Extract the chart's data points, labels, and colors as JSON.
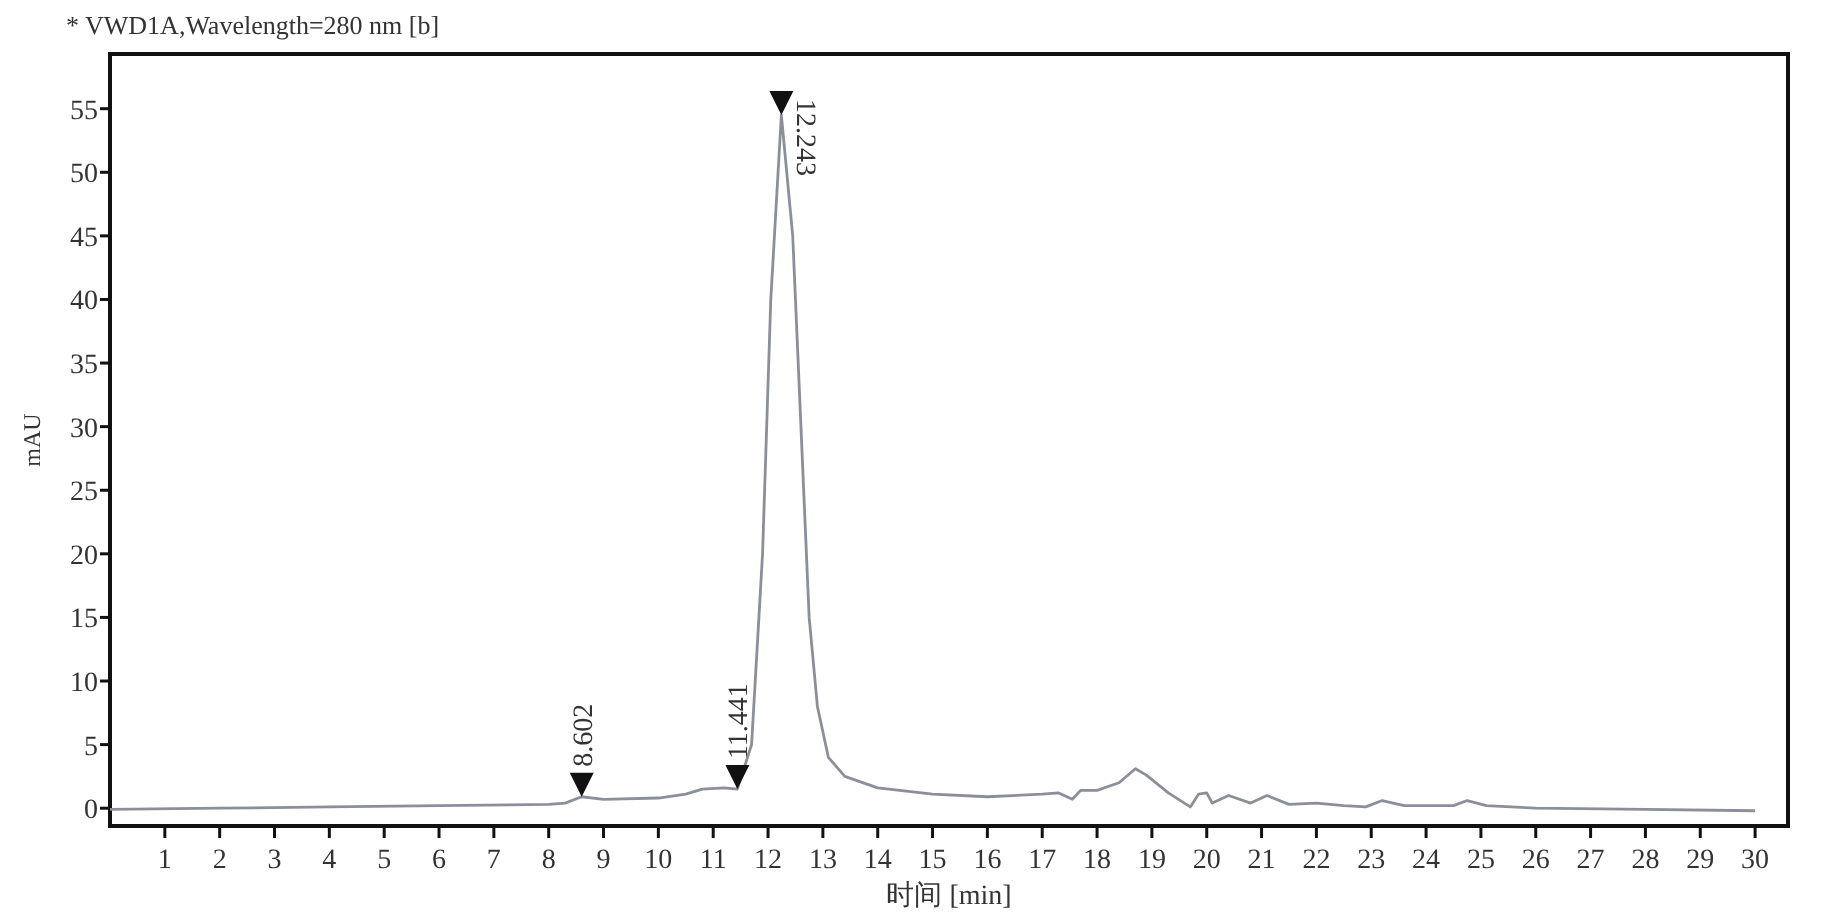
{
  "chart_data": {
    "type": "line",
    "title": "* VWD1A,Wavelength=280 nm [b]",
    "xlabel": "时间 [min]",
    "ylabel": "mAU",
    "x": [
      0,
      2,
      4,
      6,
      8,
      8.3,
      8.6,
      9,
      10,
      10.5,
      10.8,
      11.2,
      11.44,
      11.7,
      11.9,
      12.05,
      12.243,
      12.45,
      12.6,
      12.75,
      12.9,
      13.1,
      13.4,
      14,
      15,
      16,
      17,
      17.3,
      17.55,
      17.7,
      18,
      18.4,
      18.7,
      18.9,
      19.3,
      19.7,
      19.85,
      20,
      20.1,
      20.4,
      20.8,
      21.1,
      21.5,
      22,
      22.5,
      22.9,
      23.2,
      23.6,
      24.5,
      24.75,
      25.1,
      26,
      28,
      30
    ],
    "series": [
      {
        "color": "#8a8f99",
        "values": [
          -0.1,
          0,
          0.1,
          0.2,
          0.3,
          0.4,
          0.9,
          0.7,
          0.8,
          1.1,
          1.5,
          1.6,
          1.5,
          5,
          20,
          40,
          54.5,
          45,
          30,
          15,
          8,
          4,
          2.5,
          1.6,
          1.1,
          0.9,
          1.1,
          1.2,
          0.7,
          1.4,
          1.4,
          2,
          3.1,
          2.6,
          1.2,
          0.1,
          1.1,
          1.2,
          0.4,
          1,
          0.4,
          1,
          0.3,
          0.4,
          0.2,
          0.1,
          0.6,
          0.2,
          0.2,
          0.6,
          0.2,
          0,
          -0.1,
          -0.2
        ]
      }
    ],
    "xlim": [
      0,
      30.6
    ],
    "ylim": [
      -1.4,
      59.3
    ],
    "xticks": [
      1,
      2,
      3,
      4,
      5,
      6,
      7,
      8,
      9,
      10,
      11,
      12,
      13,
      14,
      15,
      16,
      17,
      18,
      19,
      20,
      21,
      22,
      23,
      24,
      25,
      26,
      27,
      28,
      29,
      30
    ],
    "yticks": [
      0,
      5,
      10,
      15,
      20,
      25,
      30,
      35,
      40,
      45,
      50,
      55
    ],
    "annotations": [
      {
        "text": "8.602",
        "x": 8.602,
        "y": 0.9
      },
      {
        "text": "11.441",
        "x": 11.441,
        "y": 1.5
      },
      {
        "text": "12.243",
        "x": 12.243,
        "y": 54.5
      }
    ]
  }
}
